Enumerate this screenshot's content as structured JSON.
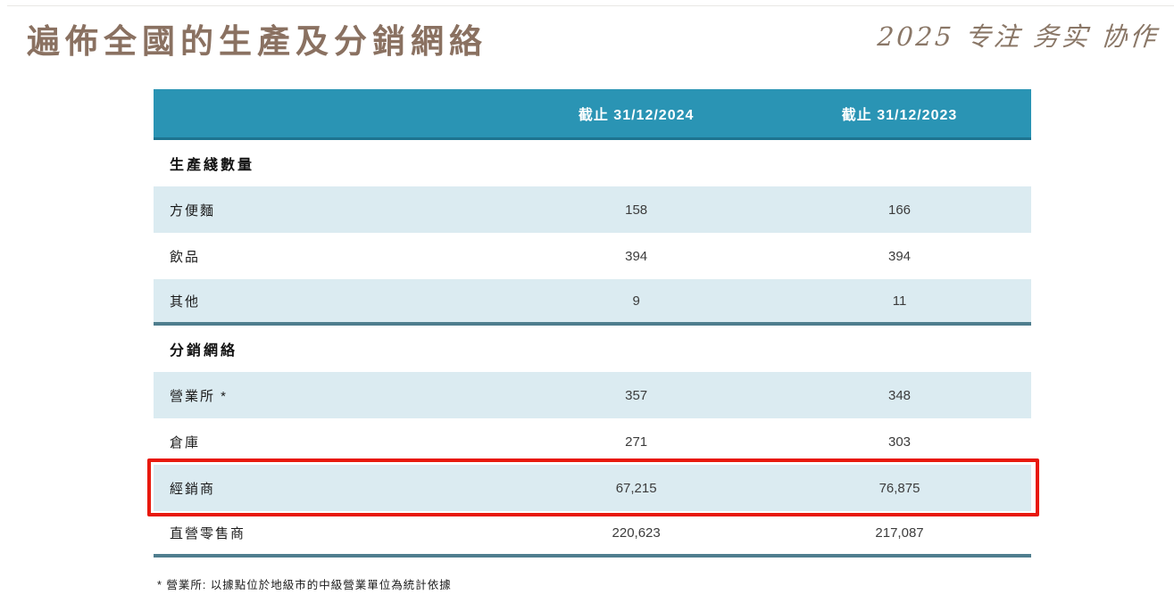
{
  "page": {
    "title": "遍佈全國的生產及分銷網絡",
    "slogan": "2025 专注 务实 协作"
  },
  "table": {
    "columns": {
      "col2024": "截止 31/12/2024",
      "col2023": "截止 31/12/2023"
    },
    "sections": [
      {
        "header": "生產綫數量",
        "rows": [
          {
            "label": "方便麵",
            "v2024": "158",
            "v2023": "166"
          },
          {
            "label": "飲品",
            "v2024": "394",
            "v2023": "394"
          },
          {
            "label": "其他",
            "v2024": "9",
            "v2023": "11"
          }
        ]
      },
      {
        "header": "分銷網絡",
        "rows": [
          {
            "label": "營業所 *",
            "v2024": "357",
            "v2023": "348"
          },
          {
            "label": "倉庫",
            "v2024": "271",
            "v2023": "303"
          },
          {
            "label": "經銷商",
            "v2024": "67,215",
            "v2023": "76,875",
            "highlighted": true
          },
          {
            "label": "直營零售商",
            "v2024": "220,623",
            "v2023": "217,087"
          }
        ]
      }
    ],
    "footnote": "* 營業所: 以據點位於地級市的中級營業單位為統計依據"
  },
  "colors": {
    "header_bg": "#2a94b4",
    "header_border": "#1e7490",
    "shaded_row_bg": "#dbebf1",
    "section_divider": "#4f7e8e",
    "highlight_border": "#e8190d",
    "title_text": "#8a7161",
    "slogan_text": "#8a7767"
  }
}
